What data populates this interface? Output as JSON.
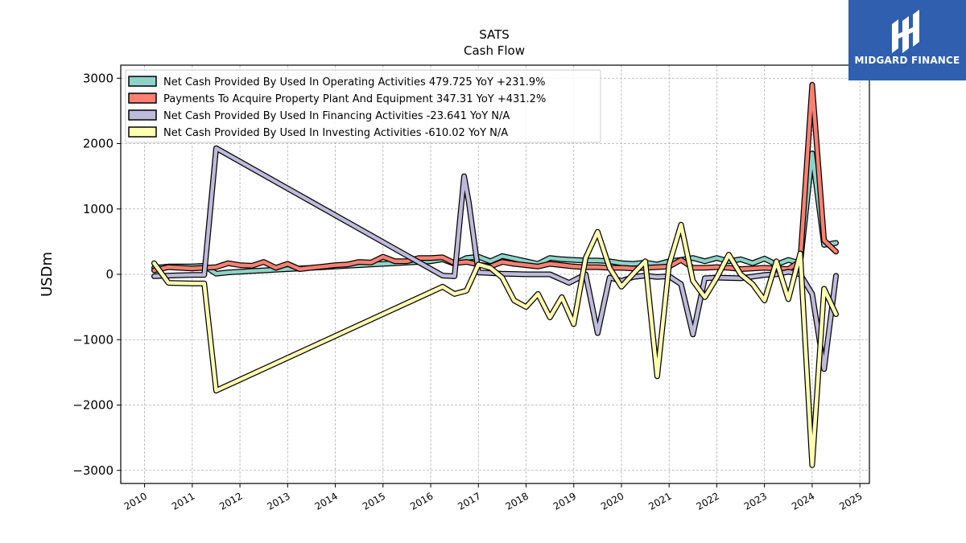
{
  "brand": {
    "name": "MIDGARD FINANCE",
    "bg_color": "#2f5fae"
  },
  "chart_data": {
    "type": "line",
    "title": "SATS",
    "subtitle": "Cash Flow",
    "xlabel": "",
    "ylabel": "USDm",
    "xlim": [
      2009.5,
      2025.2
    ],
    "ylim": [
      -3200,
      3200
    ],
    "x_ticks": [
      2010,
      2011,
      2012,
      2013,
      2014,
      2015,
      2016,
      2017,
      2018,
      2019,
      2020,
      2021,
      2022,
      2023,
      2024,
      2025
    ],
    "y_ticks": [
      -3000,
      -2000,
      -1000,
      0,
      1000,
      2000,
      3000
    ],
    "y_tick_labels": [
      "−3000",
      "−2000",
      "−1000",
      "0",
      "1000",
      "2000",
      "3000"
    ],
    "grid": true,
    "legend_position": "top-left",
    "series": [
      {
        "name": "Net Cash Provided By Used In Operating Activities  479.725 YoY +231.9%",
        "color": "#8dd3c7",
        "x": [
          2010.2,
          2010.5,
          2011.0,
          2011.25,
          2011.5,
          2011.75,
          2012.0,
          2012.25,
          2012.5,
          2012.75,
          2013.0,
          2013.25,
          2013.5,
          2013.75,
          2014.0,
          2014.25,
          2014.5,
          2014.75,
          2015.0,
          2015.25,
          2015.5,
          2015.75,
          2016.0,
          2016.25,
          2016.5,
          2016.75,
          2017.0,
          2017.25,
          2017.5,
          2017.75,
          2018.0,
          2018.25,
          2018.5,
          2018.75,
          2019.0,
          2019.25,
          2019.5,
          2019.75,
          2020.0,
          2020.25,
          2020.5,
          2020.75,
          2021.0,
          2021.25,
          2021.5,
          2021.75,
          2022.0,
          2022.25,
          2022.5,
          2022.75,
          2023.0,
          2023.25,
          2023.5,
          2023.75,
          2024.0,
          2024.25,
          2024.5
        ],
        "values": [
          100,
          120,
          120,
          130,
          10,
          30,
          40,
          50,
          60,
          70,
          80,
          90,
          100,
          110,
          120,
          130,
          140,
          150,
          160,
          170,
          180,
          190,
          200,
          230,
          160,
          250,
          270,
          200,
          280,
          240,
          200,
          160,
          250,
          230,
          220,
          210,
          210,
          200,
          170,
          160,
          180,
          150,
          200,
          220,
          250,
          200,
          250,
          200,
          230,
          170,
          240,
          150,
          220,
          170,
          1850,
          450,
          480
        ]
      },
      {
        "name": "Payments To Acquire Property Plant And Equipment  347.31 YoY +431.2%",
        "color": "#fb8072",
        "x": [
          2010.2,
          2010.5,
          2011.0,
          2011.25,
          2011.5,
          2011.75,
          2012.0,
          2012.25,
          2012.5,
          2012.75,
          2013.0,
          2013.25,
          2013.5,
          2013.75,
          2014.0,
          2014.25,
          2014.5,
          2014.75,
          2015.0,
          2015.25,
          2015.5,
          2015.75,
          2016.0,
          2016.25,
          2016.5,
          2016.75,
          2017.0,
          2017.25,
          2017.5,
          2017.75,
          2018.0,
          2018.25,
          2018.5,
          2018.75,
          2019.0,
          2019.25,
          2019.5,
          2019.75,
          2020.0,
          2020.25,
          2020.5,
          2020.75,
          2021.0,
          2021.25,
          2021.5,
          2021.75,
          2022.0,
          2022.25,
          2022.5,
          2022.75,
          2023.0,
          2023.25,
          2023.5,
          2023.75,
          2024.0,
          2024.25,
          2024.5
        ],
        "values": [
          60,
          110,
          90,
          100,
          110,
          170,
          140,
          130,
          190,
          100,
          160,
          80,
          100,
          120,
          140,
          150,
          190,
          180,
          270,
          200,
          200,
          250,
          250,
          260,
          170,
          190,
          150,
          120,
          190,
          160,
          140,
          120,
          160,
          140,
          120,
          110,
          110,
          100,
          100,
          90,
          100,
          110,
          120,
          220,
          100,
          100,
          110,
          100,
          80,
          90,
          100,
          90,
          80,
          200,
          2900,
          520,
          347
        ]
      },
      {
        "name": "Net Cash Provided By Used In Financing Activities  -23.641 YoY N/A",
        "color": "#bebada",
        "x": [
          2010.2,
          2010.5,
          2011.0,
          2011.25,
          2011.5,
          2016.25,
          2016.5,
          2016.7,
          2016.8,
          2017.0,
          2017.5,
          2018.0,
          2018.5,
          2018.9,
          2019.25,
          2019.5,
          2019.75,
          2020.0,
          2020.25,
          2020.5,
          2020.75,
          2021.0,
          2021.25,
          2021.5,
          2021.75,
          2022.0,
          2022.5,
          2023.0,
          2023.25,
          2023.5,
          2023.75,
          2024.0,
          2024.25,
          2024.5
        ],
        "values": [
          -30,
          -20,
          -10,
          -10,
          1930,
          -20,
          -30,
          1500,
          1100,
          30,
          10,
          0,
          0,
          -130,
          0,
          -900,
          -50,
          -100,
          -40,
          -20,
          -40,
          -30,
          -150,
          -920,
          -60,
          -50,
          -60,
          -10,
          0,
          40,
          0,
          -300,
          -1450,
          -24
        ]
      },
      {
        "name": "Net Cash Provided By Used In Investing Activities  -610.02 YoY N/A",
        "color": "#ffffb3",
        "x": [
          2010.2,
          2010.5,
          2011.0,
          2011.25,
          2011.5,
          2016.25,
          2016.5,
          2016.75,
          2017.0,
          2017.25,
          2017.5,
          2017.75,
          2018.0,
          2018.25,
          2018.5,
          2018.75,
          2019.0,
          2019.25,
          2019.5,
          2019.75,
          2020.0,
          2020.25,
          2020.5,
          2020.75,
          2021.0,
          2021.25,
          2021.5,
          2021.75,
          2022.0,
          2022.25,
          2022.5,
          2022.75,
          2023.0,
          2023.25,
          2023.5,
          2023.75,
          2024.0,
          2024.25,
          2024.5
        ],
        "values": [
          170,
          -130,
          -140,
          -140,
          -1780,
          -190,
          -300,
          -250,
          150,
          100,
          -50,
          -400,
          -500,
          -300,
          -660,
          -350,
          -760,
          250,
          650,
          100,
          -190,
          10,
          200,
          -1560,
          150,
          760,
          -100,
          -350,
          -50,
          300,
          0,
          -150,
          -400,
          200,
          -380,
          320,
          -2920,
          -220,
          -610
        ]
      }
    ]
  }
}
